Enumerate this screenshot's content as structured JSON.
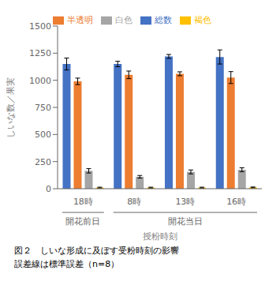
{
  "chart_data": {
    "type": "bar",
    "title": "図２　しいな形成に及ぼす受粉時刻の影響",
    "subtitle": "誤差線は標準誤差（n=8）",
    "x_label": "授粉時刻",
    "y_label": "しいな数／果実",
    "categories": [
      "18時",
      "8時",
      "13時",
      "16時"
    ],
    "series": [
      {
        "name": "総数",
        "color": "#4472c4",
        "values": [
          1150,
          1150,
          1220,
          1215
        ],
        "errors": [
          55,
          25,
          18,
          65
        ]
      },
      {
        "name": "半透明",
        "color": "#ed7d31",
        "values": [
          990,
          1050,
          1060,
          1025
        ],
        "errors": [
          30,
          35,
          18,
          55
        ]
      },
      {
        "name": "白色",
        "color": "#a5a5a5",
        "values": [
          165,
          110,
          155,
          175
        ],
        "errors": [
          20,
          12,
          18,
          18
        ]
      },
      {
        "name": "褐色",
        "color": "#ffc000",
        "values": [
          10,
          10,
          10,
          12
        ],
        "errors": [
          4,
          4,
          4,
          4
        ]
      }
    ],
    "annotations": [
      {
        "text": "開花前日",
        "categories": [
          "18時"
        ]
      },
      {
        "text": "開花当日",
        "categories": [
          "8時",
          "13時",
          "16時"
        ]
      }
    ],
    "ylim": [
      0,
      1500
    ],
    "yticks": [
      0,
      250,
      500,
      750,
      1000,
      1250,
      1500
    ],
    "grid": false,
    "legend": "top"
  }
}
